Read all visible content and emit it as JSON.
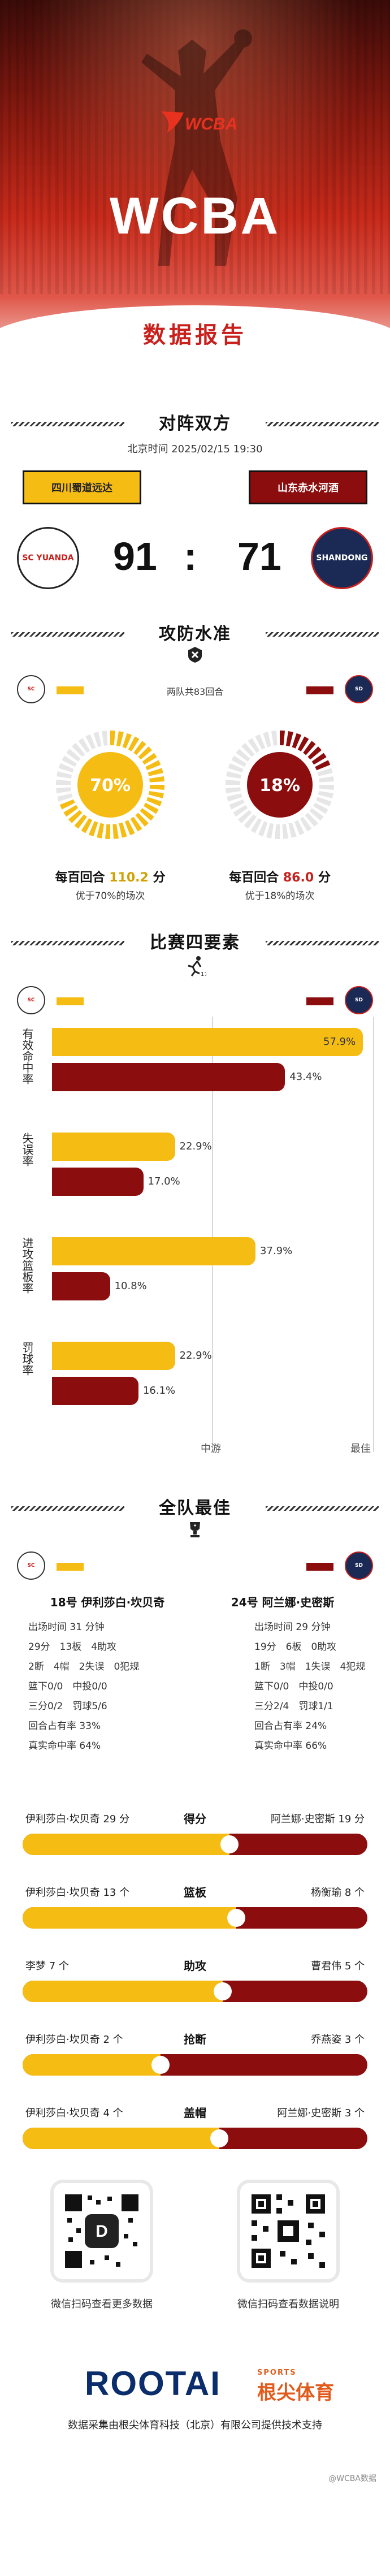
{
  "hero": {
    "league": "WCBA",
    "logo_text": "WCBA",
    "subtitle": "数据报告"
  },
  "vs": {
    "title": "对阵双方",
    "datetime": "北京时间 2025/02/15 19:30",
    "home_team": "四川蜀道远达",
    "away_team": "山东赤水河酒",
    "home_score": "91",
    "separator": ":",
    "away_score": "71",
    "home_badge": "SC YUANDA",
    "away_badge": "SHANDONG"
  },
  "efficiency": {
    "title": "攻防水准",
    "rounds_text": "两队共83回合",
    "home_pct": 70,
    "home_pct_label": "70%",
    "away_pct": 18,
    "away_pct_label": "18%",
    "home_label_prefix": "每百回合",
    "home_value": "110.2",
    "home_unit": "分",
    "away_label_prefix": "每百回合",
    "away_value": "86.0",
    "away_unit": "分",
    "home_sub": "优于70%的场次",
    "away_sub": "优于18%的场次"
  },
  "factors": {
    "title": "比赛四要素",
    "rows": [
      {
        "label": "有效命中率",
        "home": 57.9,
        "home_label": "57.9%",
        "away": 43.4,
        "away_label": "43.4%"
      },
      {
        "label": "失误率",
        "home": 22.9,
        "home_label": "22.9%",
        "away": 17.0,
        "away_label": "17.0%"
      },
      {
        "label": "进攻篮板率",
        "home": 37.9,
        "home_label": "37.9%",
        "away": 10.8,
        "away_label": "10.8%"
      },
      {
        "label": "罚球率",
        "home": 22.9,
        "home_label": "22.9%",
        "away": 16.1,
        "away_label": "16.1%"
      }
    ],
    "axis_mid": "中游",
    "axis_best": "最佳"
  },
  "best": {
    "title": "全队最佳",
    "home_player": "18号 伊利莎白·坎贝奇",
    "away_player": "24号 阿兰娜·史密斯",
    "home_stats": [
      "出场时间 31 分钟",
      "29分　13板　4助攻",
      "2断　4帽　2失误　0犯规",
      "篮下0/0　中投0/0",
      "三分0/2　罚球5/6",
      "回合占有率 33%",
      "真实命中率 64%"
    ],
    "away_stats": [
      "出场时间 29 分钟",
      "19分　6板　0助攻",
      "1断　3帽　1失误　4犯规",
      "篮下0/0　中投0/0",
      "三分2/4　罚球1/1",
      "回合占有率 24%",
      "真实命中率 66%"
    ],
    "compare": [
      {
        "cat": "得分",
        "left": "伊利莎白·坎贝奇 29 分",
        "right": "阿兰娜·史密斯 19 分",
        "share": 0.6
      },
      {
        "cat": "篮板",
        "left": "伊利莎白·坎贝奇 13 个",
        "right": "杨衡瑜 8 个",
        "share": 0.62
      },
      {
        "cat": "助攻",
        "left": "李梦 7 个",
        "right": "曹君伟 5 个",
        "share": 0.58
      },
      {
        "cat": "抢断",
        "left": "伊利莎白·坎贝奇 2 个",
        "right": "乔燕姿 3 个",
        "share": 0.4
      },
      {
        "cat": "盖帽",
        "left": "伊利莎白·坎贝奇 4 个",
        "right": "阿兰娜·史密斯 3 个",
        "share": 0.57
      }
    ]
  },
  "footer": {
    "qr_left_caption": "微信扫码查看更多数据",
    "qr_right_caption": "微信扫码查看数据说明",
    "brand": "ROOTAI",
    "brand_cn": "根尖体育",
    "brand_en": "SPORTS",
    "credit": "数据采集由根尖体育科技（北京）有限公司提供技术支持",
    "watermark": "@WCBA数据"
  },
  "colors": {
    "home": "#f5bd14",
    "away": "#8b0d0d",
    "accent": "#c8201d"
  }
}
